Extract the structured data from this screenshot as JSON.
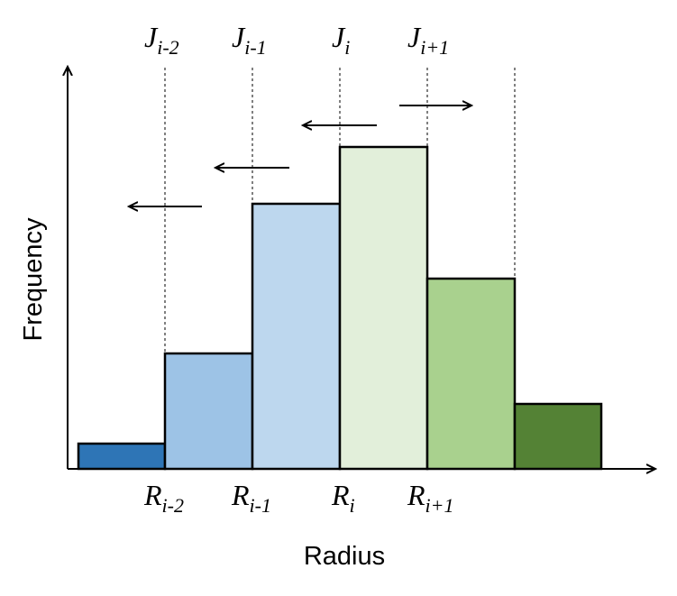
{
  "axes": {
    "x_label": "Radius",
    "y_label": "Frequency"
  },
  "flux_labels": [
    {
      "main": "J",
      "sub": "i-2"
    },
    {
      "main": "J",
      "sub": "i-1"
    },
    {
      "main": "J",
      "sub": "i"
    },
    {
      "main": "J",
      "sub": "i+1"
    }
  ],
  "radius_labels": [
    {
      "main": "R",
      "sub": "i-2"
    },
    {
      "main": "R",
      "sub": "i-1"
    },
    {
      "main": "R",
      "sub": "i"
    },
    {
      "main": "R",
      "sub": "i+1"
    }
  ],
  "bins": [
    {
      "color": "#2e75b6"
    },
    {
      "color": "#9dc3e6"
    },
    {
      "color": "#bdd7ee"
    },
    {
      "color": "#e2efda"
    },
    {
      "color": "#a9d18e"
    },
    {
      "color": "#548235"
    }
  ],
  "arrows": [
    {
      "direction": "left"
    },
    {
      "direction": "left"
    },
    {
      "direction": "left"
    },
    {
      "direction": "right"
    }
  ]
}
